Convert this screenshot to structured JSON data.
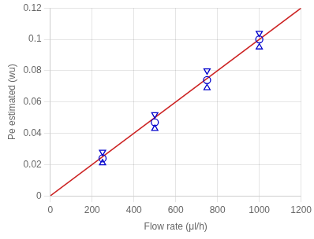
{
  "chart_data": {
    "type": "scatter",
    "xlabel": "Flow rate (μl/h)",
    "ylabel": "Pe estimated (wu)",
    "xlim": [
      0,
      1200
    ],
    "ylim": [
      0,
      0.12
    ],
    "xticks": [
      0,
      200,
      400,
      600,
      800,
      1000,
      1200
    ],
    "yticks": [
      0,
      0.02,
      0.04,
      0.06,
      0.08,
      0.1,
      0.12
    ],
    "grid": true,
    "series": [
      {
        "type": "line",
        "line_style": "solid",
        "color": "#cc2222",
        "x": [
          0,
          1200
        ],
        "values": [
          0,
          0.12
        ]
      },
      {
        "marker": "circle",
        "color": "#0000cc",
        "x": [
          250,
          500,
          750,
          1000
        ],
        "values": [
          0.024,
          0.047,
          0.074,
          0.1
        ]
      },
      {
        "marker": "triangle_down",
        "color": "#0000cc",
        "x": [
          250,
          500,
          750,
          1000
        ],
        "values": [
          0.028,
          0.052,
          0.08,
          0.104
        ]
      },
      {
        "marker": "triangle_up",
        "color": "#0000cc",
        "x": [
          250,
          500,
          750,
          1000
        ],
        "values": [
          0.021,
          0.043,
          0.069,
          0.095
        ]
      }
    ]
  }
}
